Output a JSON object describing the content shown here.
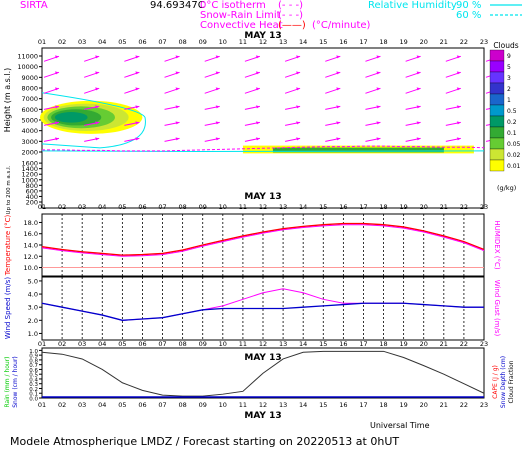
{
  "header": {
    "site": "SIRTA",
    "coord_text": "94.69347C",
    "legend_iso": "0°C isotherm",
    "legend_snow": "Snow-Rain Limit",
    "legend_conv": "Convective Heat",
    "legend_conv_unit": "(°C/minute)",
    "legend_rh": "Relative Humidity",
    "rh_90": "90 %",
    "rh_60": "60 %",
    "line_style_dashed": "(- - -)",
    "line_style_solid": "(——)"
  },
  "hours": [
    "01",
    "02",
    "03",
    "04",
    "05",
    "06",
    "07",
    "08",
    "09",
    "10",
    "11",
    "12",
    "13",
    "14",
    "15",
    "16",
    "17",
    "18",
    "19",
    "20",
    "21",
    "22",
    "23"
  ],
  "date_label": "MAY 13",
  "universal_time": "Universal Time",
  "footer": "Modele Atmospherique LMDZ / Forecast starting on 20220513 at 0hUT",
  "colors": {
    "magenta": "#ff00ff",
    "cyan": "#00e5ee",
    "red": "#ff0000",
    "blue": "#0000cc",
    "black": "#000000",
    "green": "#00cc00"
  },
  "chart_data": [
    {
      "type": "heatmap",
      "panel": "clouds",
      "ylabel": "Height (m a.s.l.)",
      "ylabel_low": "Up to 200 m a.s.l.",
      "yticks": [
        11000,
        10000,
        9000,
        8000,
        7000,
        6000,
        5000,
        4000,
        3000,
        2000,
        1600,
        1400,
        1200,
        1000,
        800,
        600,
        400,
        200
      ],
      "ylim": [
        0,
        11500
      ],
      "colorbar_title": "Clouds",
      "colorbar_unit": "(g/kg)",
      "colorbar_levels": [
        "9",
        "5",
        "3",
        "2",
        "1",
        "0.5",
        "0.2",
        "0.1",
        "0.05",
        "0.02",
        "0.01"
      ],
      "colorbar_colors": [
        "#cc00cc",
        "#9900ff",
        "#6633ff",
        "#3333cc",
        "#1a66cc",
        "#0099cc",
        "#009966",
        "#33aa33",
        "#66cc33",
        "#cce633",
        "#ffff00"
      ],
      "cloud_layers": [
        {
          "name": "mid-level",
          "hours": [
            1,
            5
          ],
          "height_m": [
            3700,
            6800
          ]
        },
        {
          "name": "low-level",
          "hours": [
            11,
            22
          ],
          "height_m": [
            1950,
            2600
          ]
        }
      ],
      "wind_arrow_heights_m": [
        10500,
        9000,
        7500,
        6000,
        4500,
        3000
      ],
      "isotherm_0C_m": [
        2200,
        2200,
        2150,
        2150,
        2100,
        2100,
        2100,
        2150,
        2200,
        2250,
        2300,
        2350,
        2400,
        2450,
        2500,
        2500,
        2550,
        2550,
        2500,
        2500,
        2450,
        2450,
        2400
      ]
    },
    {
      "type": "line",
      "panel": "temperature",
      "ylabel": "Temperature (°C)",
      "ylabel_right": "HUMIDEX (°C)",
      "yticks": [
        10.0,
        12.0,
        14.0,
        16.0,
        18.0
      ],
      "ylim": [
        8.5,
        19.5
      ],
      "series": [
        {
          "values": [
            13.7,
            13.2,
            12.8,
            12.5,
            12.2,
            12.3,
            12.5,
            13.1,
            14.0,
            14.8,
            15.6,
            16.3,
            16.9,
            17.3,
            17.6,
            17.8,
            17.8,
            17.6,
            17.2,
            16.5,
            15.6,
            14.6,
            13.2
          ]
        },
        {
          "values": [
            13.5,
            13.0,
            12.6,
            12.3,
            12.0,
            12.1,
            12.3,
            12.9,
            13.8,
            14.6,
            15.4,
            16.1,
            16.7,
            17.1,
            17.4,
            17.6,
            17.6,
            17.4,
            17.0,
            16.3,
            15.4,
            14.4,
            13.0
          ]
        }
      ]
    },
    {
      "type": "line",
      "panel": "wind",
      "ylabel": "Wind Speed (m/s)",
      "ylabel_right": "Wind Gust (m/s)",
      "yticks": [
        1.0,
        2.0,
        3.0,
        4.0,
        5.0
      ],
      "ylim": [
        0.5,
        5.3
      ],
      "series": [
        {
          "values": [
            3.3,
            3.0,
            2.7,
            2.4,
            2.0,
            2.1,
            2.2,
            2.5,
            2.8,
            2.9,
            2.9,
            2.9,
            2.9,
            3.0,
            3.1,
            3.2,
            3.3,
            3.3,
            3.3,
            3.2,
            3.1,
            3.0,
            3.0
          ]
        },
        {
          "values": [
            3.3,
            3.0,
            2.7,
            2.4,
            2.0,
            2.1,
            2.2,
            2.5,
            2.8,
            3.1,
            3.6,
            4.1,
            4.4,
            4.1,
            3.6,
            3.3,
            3.3,
            3.3,
            3.3,
            3.2,
            3.1,
            3.0,
            3.0
          ]
        }
      ]
    },
    {
      "type": "line",
      "panel": "precip",
      "ylabel_left": [
        "Rain (mm / hour)",
        "Snow (cm / hour)"
      ],
      "ylabel_right": [
        "Snow Depth (cm)",
        "Cloud Fraction",
        "CAPE (J / g)"
      ],
      "yticks": [
        0.0,
        0.1,
        0.2,
        0.3,
        0.4,
        0.5,
        0.6,
        0.7,
        0.8,
        0.9,
        1.0
      ],
      "ylim": [
        0,
        1.05
      ],
      "series": [
        {
          "values": [
            0.96,
            0.92,
            0.82,
            0.6,
            0.32,
            0.16,
            0.06,
            0.04,
            0.04,
            0.08,
            0.14,
            0.52,
            0.82,
            0.96,
            0.98,
            0.98,
            0.98,
            0.98,
            0.85,
            0.68,
            0.5,
            0.3,
            0.1
          ]
        }
      ]
    }
  ]
}
